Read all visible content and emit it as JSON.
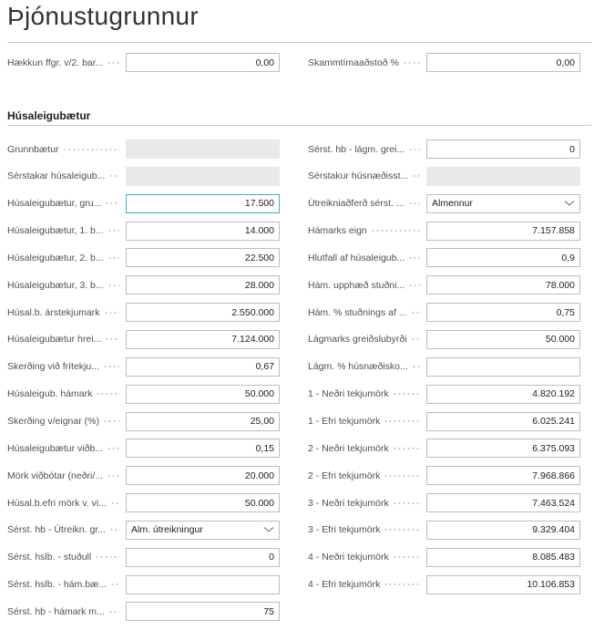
{
  "header": {
    "title": "Þjónustugrunnur"
  },
  "general": {
    "left": {
      "label": "Hækkun ffgr. v/2. bar...",
      "value": "0,00"
    },
    "right": {
      "label": "Skammtímaaðstoð %",
      "value": "0,00"
    }
  },
  "section": {
    "title": "Húsaleigubætur",
    "left": [
      {
        "label": "Grunnbætur",
        "disabled": true
      },
      {
        "label": "Sérstakar húsaleigub...",
        "disabled": true
      },
      {
        "label": "Húsaleigubætur, gru...",
        "value": "17.500",
        "focused": true
      },
      {
        "label": "Húsaleigubætur, 1. b...",
        "value": "14.000"
      },
      {
        "label": "Húsaleigubætur, 2. b...",
        "value": "22.500"
      },
      {
        "label": "Húsaleigubætur, 3. b...",
        "value": "28.000"
      },
      {
        "label": "Húsal.b. árstekjumark",
        "value": "2.550.000"
      },
      {
        "label": "Húsaleigubætur hrei...",
        "value": "7.124.000"
      },
      {
        "label": "Skerðing við frítekju...",
        "value": "0,67"
      },
      {
        "label": "Húsaleigub. hámark",
        "value": "50.000"
      },
      {
        "label": "Skerðing v/eignar (%)",
        "value": "25,00"
      },
      {
        "label": "Húsaleigubætur viðb...",
        "value": "0,15"
      },
      {
        "label": "Mörk viðbótar (neðri/...",
        "value": "20.000"
      },
      {
        "label": "Húsal.b.efri mörk v. vi...",
        "value": "50.000"
      },
      {
        "label": "Sérst. hb - Útreikn. gr...",
        "value": "Alm. útreikningur",
        "dropdown": true
      },
      {
        "label": "Sérst. hslb. - stuðull",
        "value": "0"
      },
      {
        "label": "Sérst. hslb. - hám.bæ..."
      },
      {
        "label": "Sérst. hb - hámark m...",
        "value": "75"
      }
    ],
    "right": [
      {
        "label": "Sérst. hb - lágm. grei...",
        "value": "0"
      },
      {
        "label": "Sérstakur húsnæðisst...",
        "disabled": true
      },
      {
        "label": "Útreikniaðferð sérst. ...",
        "value": "Almennur",
        "dropdown": true
      },
      {
        "label": "Hámarks eign",
        "value": "7.157.858"
      },
      {
        "label": "Hlutfall af húsaleigub...",
        "value": "0,9"
      },
      {
        "label": "Hám. upphæð stuðni...",
        "value": "78.000"
      },
      {
        "label": "Hám. % stuðnings af ...",
        "value": "0,75"
      },
      {
        "label": "Lágmarks greiðslubyrði",
        "value": "50.000"
      },
      {
        "label": "Lágm. % húsnæðisko..."
      },
      {
        "label": "1 - Neðri tekjumörk",
        "value": "4.820.192"
      },
      {
        "label": "1 - Efri tekjumörk",
        "value": "6.025.241"
      },
      {
        "label": "2 - Neðri tekjumörk",
        "value": "6.375.093"
      },
      {
        "label": "2 - Efri tekjumörk",
        "value": "7.968.866"
      },
      {
        "label": "3 - Neðri tekjumörk",
        "value": "7.463.524"
      },
      {
        "label": "3 - Efri tekjumörk",
        "value": "9.329.404"
      },
      {
        "label": "4 - Neðri tekjumörk",
        "value": "8.085.483"
      },
      {
        "label": "4 - Efri tekjumörk",
        "value": "10.106.853"
      }
    ]
  }
}
